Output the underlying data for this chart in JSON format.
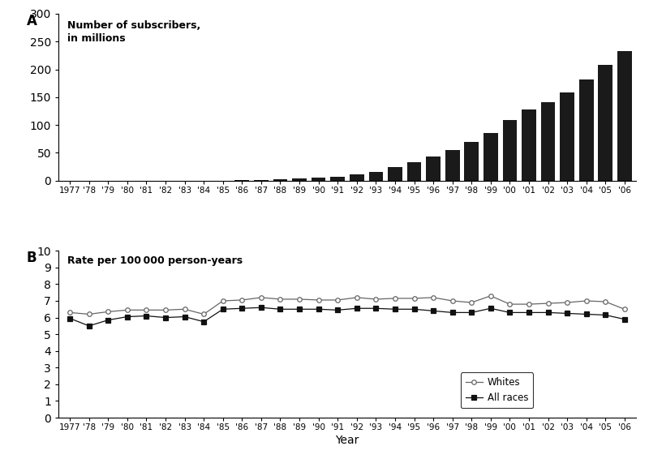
{
  "years": [
    1977,
    1978,
    1979,
    1980,
    1981,
    1982,
    1983,
    1984,
    1985,
    1986,
    1987,
    1988,
    1989,
    1990,
    1991,
    1992,
    1993,
    1994,
    1995,
    1996,
    1997,
    1998,
    1999,
    2000,
    2001,
    2002,
    2003,
    2004,
    2005,
    2006
  ],
  "tick_labels": [
    "1977",
    "'78",
    "'79",
    "'80",
    "'81",
    "'82",
    "'83",
    "'84",
    "'85",
    "'86",
    "'87",
    "'88",
    "'89",
    "'90",
    "'91",
    "'92",
    "'93",
    "'94",
    "'95",
    "'96",
    "'97",
    "'98",
    "'99",
    "'00",
    "'01",
    "'02",
    "'03",
    "'04",
    "'05",
    "'06"
  ],
  "subscribers": [
    0.0,
    0.0,
    0.0,
    0.0,
    0.0,
    0.0,
    0.0,
    0.0,
    0.34,
    0.68,
    1.23,
    2.07,
    3.51,
    5.28,
    7.56,
    11.0,
    16.0,
    24.1,
    33.8,
    44.0,
    55.3,
    69.2,
    86.0,
    109.5,
    128.4,
    140.8,
    158.7,
    182.1,
    207.9,
    233.0
  ],
  "bar_color": "#1a1a1a",
  "bar_ylim": [
    0,
    300
  ],
  "bar_yticks": [
    0,
    50,
    100,
    150,
    200,
    250,
    300
  ],
  "bar_ylabel": "Number of subscribers,\nin millions",
  "whites_rates": [
    6.3,
    6.2,
    6.35,
    6.45,
    6.45,
    6.45,
    6.5,
    6.2,
    7.0,
    7.05,
    7.2,
    7.1,
    7.1,
    7.05,
    7.05,
    7.2,
    7.1,
    7.15,
    7.15,
    7.2,
    7.0,
    6.9,
    7.3,
    6.8,
    6.8,
    6.85,
    6.9,
    7.0,
    6.95,
    6.5
  ],
  "allraces_rates": [
    5.95,
    5.5,
    5.85,
    6.05,
    6.1,
    6.0,
    6.05,
    5.75,
    6.5,
    6.55,
    6.6,
    6.5,
    6.5,
    6.5,
    6.45,
    6.55,
    6.55,
    6.5,
    6.5,
    6.4,
    6.3,
    6.3,
    6.55,
    6.3,
    6.3,
    6.3,
    6.25,
    6.2,
    6.15,
    5.9
  ],
  "line_ylim": [
    0,
    10
  ],
  "line_yticks": [
    0,
    1,
    2,
    3,
    4,
    5,
    6,
    7,
    8,
    9,
    10
  ],
  "line_ylabel": "Rate per 100 000 person-years",
  "xlabel": "Year",
  "whites_label": "Whites",
  "allraces_label": "All races",
  "whites_color": "#666666",
  "allraces_color": "#111111",
  "panel_A_label": "A",
  "panel_B_label": "B",
  "background_color": "#ffffff"
}
